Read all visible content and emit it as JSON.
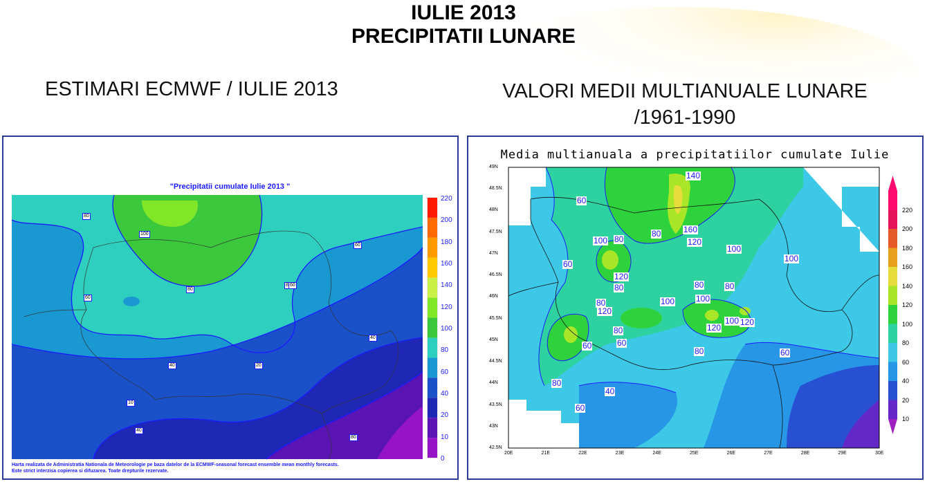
{
  "slide": {
    "title_line1": "IULIE 2013",
    "title_line2": "PRECIPITATII LUNARE",
    "left_heading": "ESTIMARI ECMWF / IULIE 2013",
    "right_heading_line1": "VALORI MEDII MULTIANUALE LUNARE",
    "right_heading_line2": "/1961-1990"
  },
  "left_map": {
    "title": "\"Precipitatii cumulate Iulie 2013 \"",
    "credit_line1": "Harta realizata de Administratia Nationala de Meteorologie pe baza datelor de la ECMWF-seasonal forecast ensemble mean monthly forecasts.",
    "credit_line2": "Este strict interzisa copierea si difuzarea. Toate drepturile rezervate.",
    "legend_values": [
      "220",
      "200",
      "180",
      "160",
      "140",
      "120",
      "100",
      "80",
      "60",
      "40",
      "20",
      "10",
      "0"
    ],
    "legend_colors": [
      "#ff1a00",
      "#ff6a00",
      "#ff9a00",
      "#ffc800",
      "#c8f046",
      "#82e628",
      "#3cc83c",
      "#2ecfbe",
      "#1a98d2",
      "#1a50c8",
      "#1e28b4",
      "#5a14b4",
      "#9614c8"
    ],
    "contour_labels": [
      "80",
      "100",
      "80",
      "60",
      "40",
      "20",
      "80",
      "60",
      "40",
      "10",
      "40",
      "60",
      "80"
    ]
  },
  "right_map": {
    "title": "Media multianuala a precipitatiilor cumulate Iulie",
    "lat_ticks": [
      "49N",
      "48.5N",
      "48N",
      "47.5N",
      "47N",
      "46.5N",
      "46N",
      "45.5N",
      "45N",
      "44.5N",
      "44N",
      "43.5N",
      "43N",
      "42.5N"
    ],
    "lon_ticks": [
      "20E",
      "21E",
      "22E",
      "23E",
      "24E",
      "25E",
      "26E",
      "27E",
      "28E",
      "29E",
      "30E"
    ],
    "legend_values": [
      "220",
      "200",
      "180",
      "160",
      "140",
      "120",
      "100",
      "80",
      "60",
      "40",
      "20",
      "10"
    ],
    "legend_colors": [
      "#ff0a6e",
      "#e6145a",
      "#e65a28",
      "#e6a01e",
      "#e6dc3c",
      "#aae628",
      "#2ed23c",
      "#2ed2a0",
      "#3cc8e6",
      "#2896e6",
      "#2850d2",
      "#6428c8"
    ],
    "contour_labels": [
      "140",
      "160",
      "120",
      "60",
      "100",
      "80",
      "80",
      "100",
      "60",
      "120",
      "80",
      "100",
      "80",
      "100",
      "80",
      "80",
      "100",
      "120",
      "100",
      "120",
      "120",
      "80",
      "60",
      "60",
      "80",
      "60",
      "80",
      "40",
      "60"
    ]
  }
}
